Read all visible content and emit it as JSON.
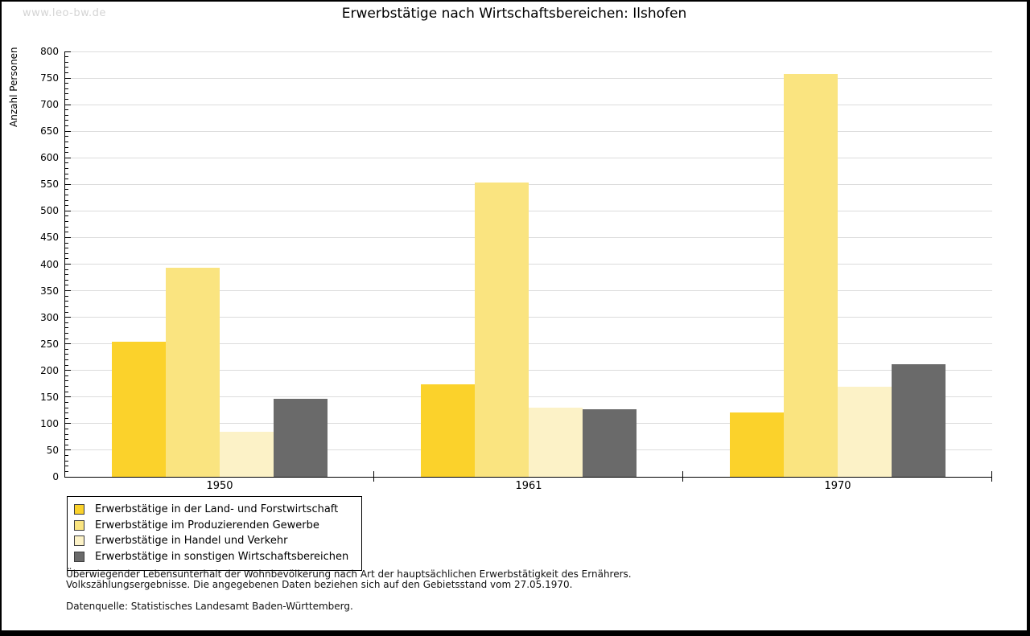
{
  "watermark": "www.leo-bw.de",
  "header": {
    "title": "Erwerbstätige nach Wirtschaftsbereichen: Ilshofen"
  },
  "y_axis_label": "Anzahl Personen",
  "legend": {
    "items": [
      {
        "label": "Erwerbstätige in der Land- und Forstwirtschaft"
      },
      {
        "label": "Erwerbstätige im Produzierenden Gewerbe"
      },
      {
        "label": "Erwerbstätige in Handel und Verkehr"
      },
      {
        "label": "Erwerbstätige in sonstigen Wirtschaftsbereichen"
      }
    ]
  },
  "footnotes": {
    "line1": "Überwiegender Lebensunterhalt der Wohnbevölkerung nach Art der hauptsächlichen Erwerbstätigkeit des Ernährers.",
    "line2": "Volkszählungsergebnisse. Die angegebenen Daten beziehen sich auf den Gebietsstand vom 27.05.1970.",
    "source": "Datenquelle: Statistisches Landesamt Baden-Württemberg."
  },
  "chart_data": {
    "type": "bar",
    "title": "Erwerbstätige nach Wirtschaftsbereichen: Ilshofen",
    "categories": [
      "1950",
      "1961",
      "1970"
    ],
    "series": [
      {
        "name": "Erwerbstätige in der Land- und Forstwirtschaft",
        "color": "#FBD22B",
        "values": [
          254,
          174,
          121
        ]
      },
      {
        "name": "Erwerbstätige im Produzierenden Gewerbe",
        "color": "#FAE480",
        "values": [
          393,
          553,
          757
        ]
      },
      {
        "name": "Erwerbstätige in Handel und Verkehr",
        "color": "#FCF2C7",
        "values": [
          85,
          130,
          170
        ]
      },
      {
        "name": "Erwerbstätige in sonstigen Wirtschaftsbereichen",
        "color": "#6A6A6A",
        "values": [
          147,
          127,
          211
        ]
      }
    ],
    "xlabel": "",
    "ylabel": "Anzahl Personen",
    "ylim": [
      0,
      800
    ],
    "ytick_step": 50,
    "minor_tick_step": 10,
    "grid": true,
    "legend_position": "bottom-left",
    "background": "#ffffff",
    "gridline_color": "#dcdcdc"
  }
}
